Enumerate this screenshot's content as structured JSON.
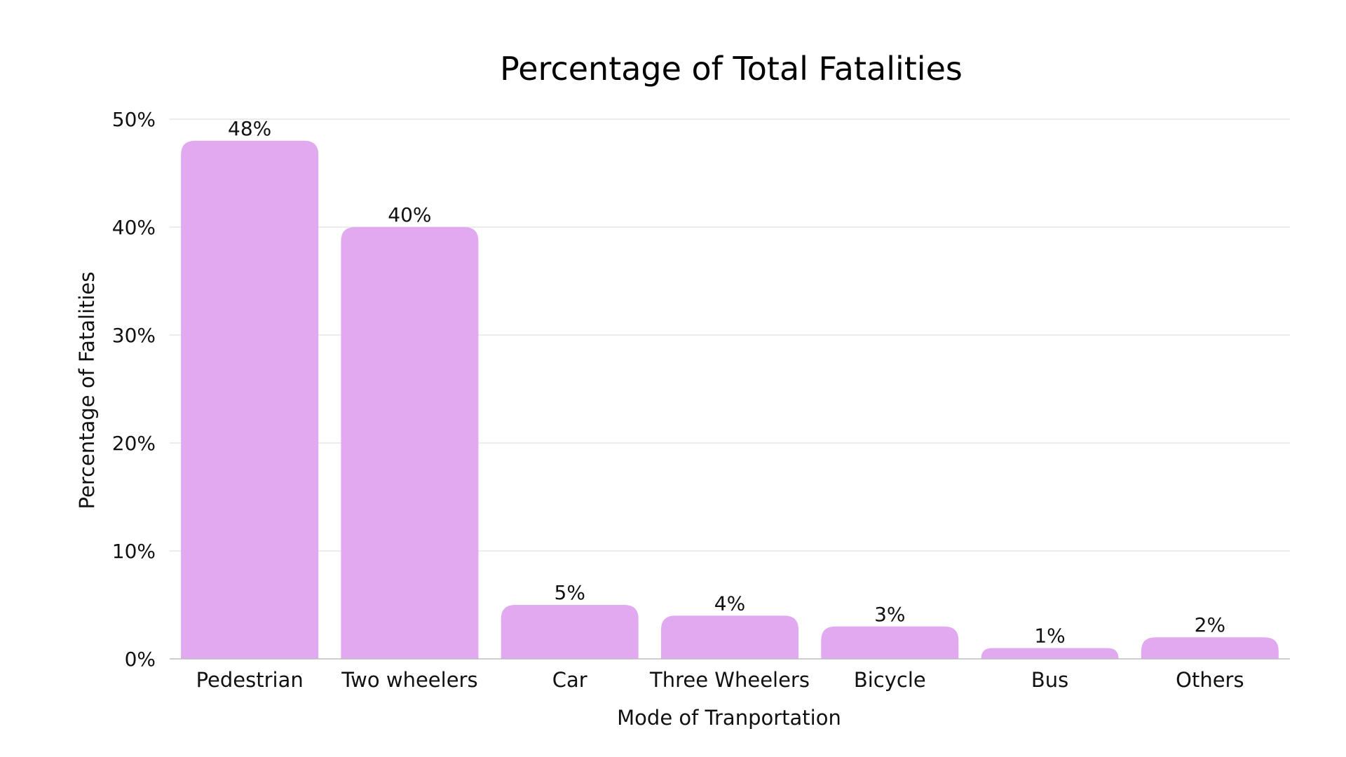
{
  "chart_data": {
    "type": "bar",
    "title": "Percentage of Total Fatalities",
    "xlabel": "Mode of Tranportation",
    "ylabel": "Percentage of Fatalities",
    "categories": [
      "Pedestrian",
      "Two wheelers",
      "Car",
      "Three Wheelers",
      "Bicycle",
      "Bus",
      "Others"
    ],
    "values": [
      48,
      40,
      5,
      4,
      3,
      1,
      2
    ],
    "value_labels": [
      "48%",
      "40%",
      "5%",
      "4%",
      "3%",
      "1%",
      "2%"
    ],
    "ylim": [
      0,
      50
    ],
    "yticks": [
      0,
      10,
      20,
      30,
      40,
      50
    ],
    "ytick_labels": [
      "0%",
      "10%",
      "20%",
      "30%",
      "40%",
      "50%"
    ],
    "grid": true,
    "bar_color": "#e1a9ef"
  }
}
